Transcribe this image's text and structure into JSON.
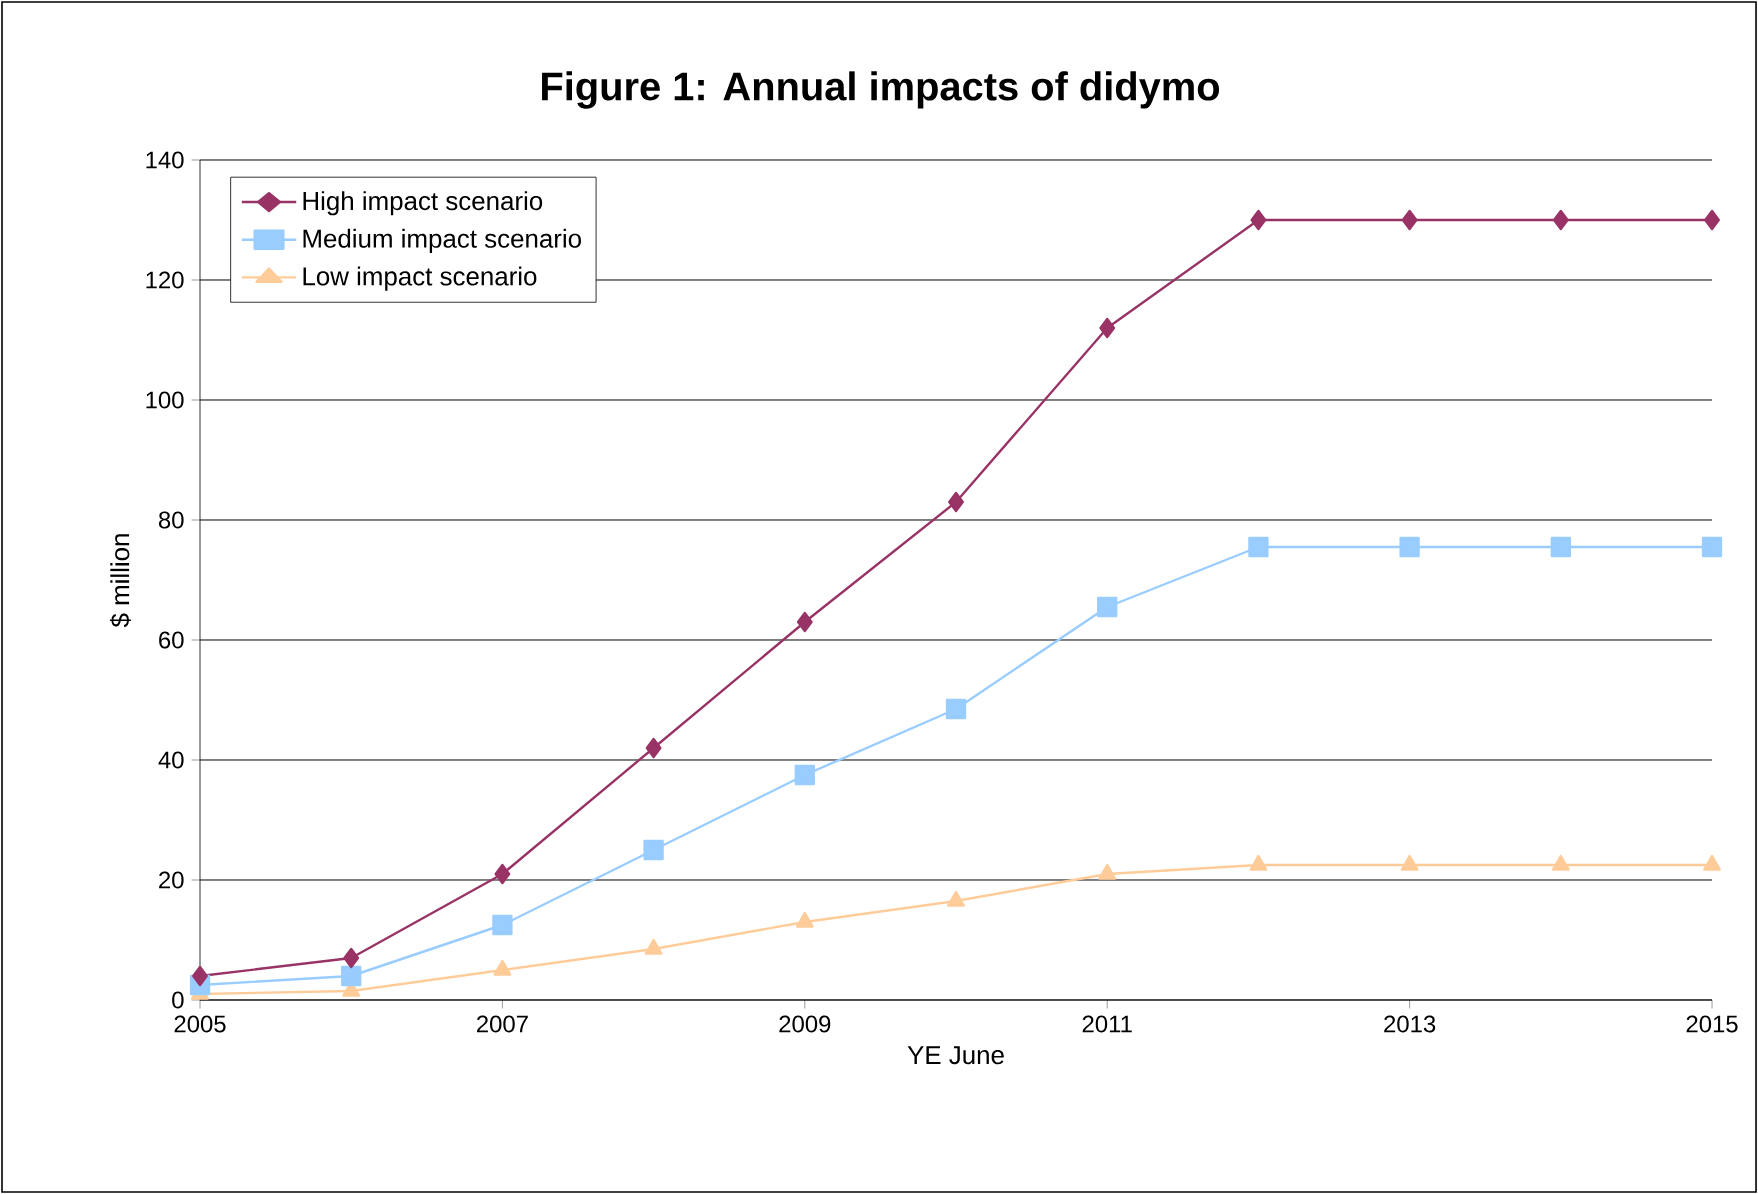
{
  "chart_data": {
    "type": "line",
    "title": "Figure 1: Annual impacts of didymo",
    "xlabel": "YE June",
    "ylabel": "$ million",
    "x": [
      2005,
      2006,
      2007,
      2008,
      2009,
      2010,
      2011,
      2012,
      2013,
      2014,
      2015
    ],
    "series": [
      {
        "name": "High impact scenario",
        "color": "#993366",
        "marker": "diamond",
        "values": [
          4,
          7,
          21,
          42,
          63,
          83,
          112,
          130,
          130,
          130,
          130
        ]
      },
      {
        "name": "Medium impact scenario",
        "color": "#99ccff",
        "marker": "square",
        "values": [
          2.5,
          4,
          12.5,
          25,
          37.5,
          48.5,
          65.5,
          75.5,
          75.5,
          75.5,
          75.5
        ]
      },
      {
        "name": "Low impact scenario",
        "color": "#ffcc99",
        "marker": "triangle",
        "values": [
          1,
          1.5,
          5,
          8.5,
          13,
          16.5,
          21,
          22.5,
          22.5,
          22.5,
          22.5
        ]
      }
    ],
    "xlim": [
      2005,
      2015
    ],
    "xticks": [
      2005,
      2007,
      2009,
      2011,
      2013,
      2015
    ],
    "ylim": [
      0,
      140
    ],
    "yticks": [
      0,
      20,
      40,
      60,
      80,
      100,
      120,
      140
    ],
    "grid": "y",
    "legend": "top left",
    "line_style": "solid"
  }
}
